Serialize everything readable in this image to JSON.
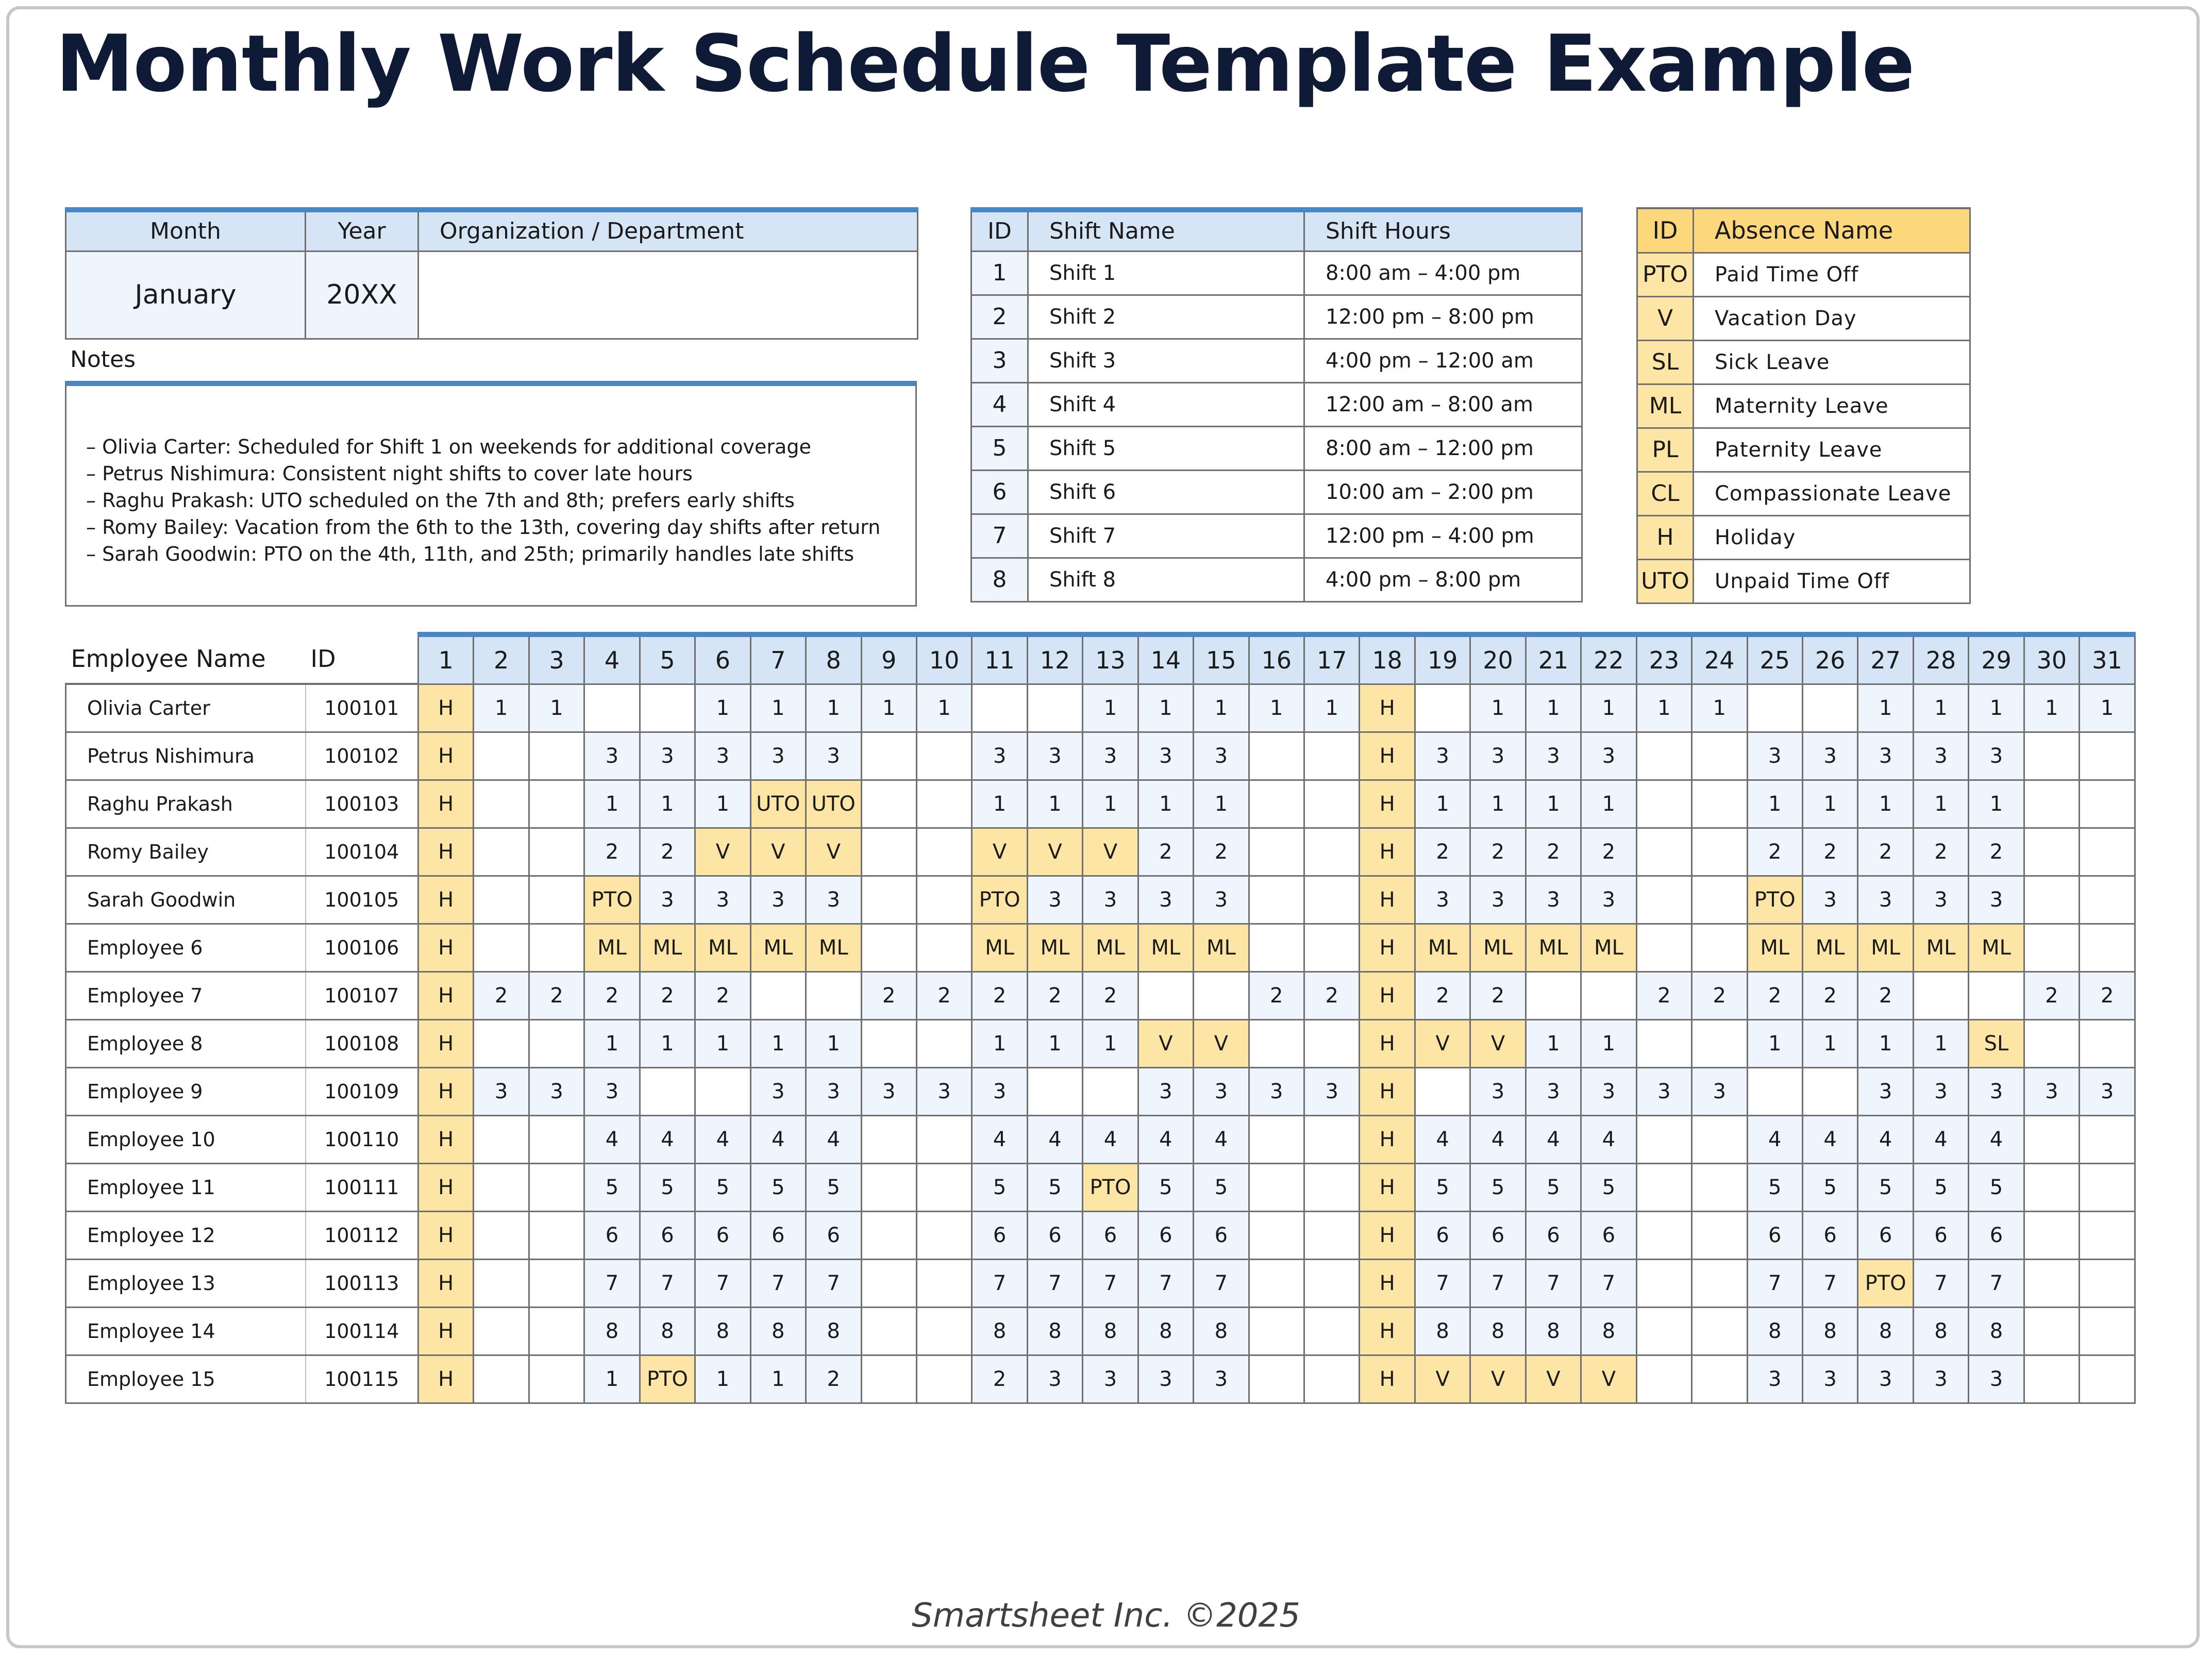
{
  "title": "Monthly Work Schedule Template Example",
  "info": {
    "headers": {
      "month": "Month",
      "year": "Year",
      "org": "Organization / Department"
    },
    "month": "January",
    "year": "20XX",
    "org": ""
  },
  "notes": {
    "label": "Notes",
    "lines": [
      "– Olivia Carter: Scheduled for Shift 1 on weekends for additional coverage",
      "– Petrus Nishimura: Consistent night shifts to cover late hours",
      "– Raghu Prakash: UTO scheduled on the 7th and 8th; prefers early shifts",
      "– Romy Bailey: Vacation from the 6th to the 13th, covering day shifts after return",
      "– Sarah Goodwin: PTO on the 4th, 11th, and 25th; primarily handles late shifts"
    ]
  },
  "shifts": {
    "headers": {
      "id": "ID",
      "name": "Shift Name",
      "hours": "Shift Hours"
    },
    "rows": [
      {
        "id": "1",
        "name": "Shift 1",
        "hours": "8:00 am – 4:00 pm"
      },
      {
        "id": "2",
        "name": "Shift 2",
        "hours": "12:00 pm – 8:00 pm"
      },
      {
        "id": "3",
        "name": "Shift 3",
        "hours": "4:00 pm – 12:00 am"
      },
      {
        "id": "4",
        "name": "Shift 4",
        "hours": "12:00 am – 8:00 am"
      },
      {
        "id": "5",
        "name": "Shift 5",
        "hours": "8:00 am – 12:00 pm"
      },
      {
        "id": "6",
        "name": "Shift 6",
        "hours": "10:00 am – 2:00 pm"
      },
      {
        "id": "7",
        "name": "Shift 7",
        "hours": "12:00 pm – 4:00 pm"
      },
      {
        "id": "8",
        "name": "Shift 8",
        "hours": "4:00 pm – 8:00 pm"
      }
    ]
  },
  "absences": {
    "headers": {
      "id": "ID",
      "name": "Absence Name"
    },
    "rows": [
      {
        "id": "PTO",
        "name": "Paid Time Off"
      },
      {
        "id": "V",
        "name": "Vacation Day"
      },
      {
        "id": "SL",
        "name": "Sick Leave"
      },
      {
        "id": "ML",
        "name": "Maternity Leave"
      },
      {
        "id": "PL",
        "name": "Paternity Leave"
      },
      {
        "id": "CL",
        "name": "Compassionate Leave"
      },
      {
        "id": "H",
        "name": "Holiday"
      },
      {
        "id": "UTO",
        "name": "Unpaid Time Off"
      }
    ]
  },
  "schedule": {
    "headers": {
      "name": "Employee Name",
      "id": "ID"
    },
    "days": [
      "1",
      "2",
      "3",
      "4",
      "5",
      "6",
      "7",
      "8",
      "9",
      "10",
      "11",
      "12",
      "13",
      "14",
      "15",
      "16",
      "17",
      "18",
      "19",
      "20",
      "21",
      "22",
      "23",
      "24",
      "25",
      "26",
      "27",
      "28",
      "29",
      "30",
      "31"
    ],
    "rows": [
      {
        "name": "Olivia Carter",
        "id": "100101",
        "cells": [
          "H",
          "1",
          "1",
          "",
          "",
          "1",
          "1",
          "1",
          "1",
          "1",
          "",
          "",
          "1",
          "1",
          "1",
          "1",
          "1",
          "H",
          "",
          "1",
          "1",
          "1",
          "1",
          "1",
          "",
          "",
          "1",
          "1",
          "1",
          "1",
          "1"
        ]
      },
      {
        "name": "Petrus Nishimura",
        "id": "100102",
        "cells": [
          "H",
          "",
          "",
          "3",
          "3",
          "3",
          "3",
          "3",
          "",
          "",
          "3",
          "3",
          "3",
          "3",
          "3",
          "",
          "",
          "H",
          "3",
          "3",
          "3",
          "3",
          "",
          "",
          "3",
          "3",
          "3",
          "3",
          "3",
          "",
          ""
        ]
      },
      {
        "name": "Raghu Prakash",
        "id": "100103",
        "cells": [
          "H",
          "",
          "",
          "1",
          "1",
          "1",
          "UTO",
          "UTO",
          "",
          "",
          "1",
          "1",
          "1",
          "1",
          "1",
          "",
          "",
          "H",
          "1",
          "1",
          "1",
          "1",
          "",
          "",
          "1",
          "1",
          "1",
          "1",
          "1",
          "",
          ""
        ]
      },
      {
        "name": "Romy Bailey",
        "id": "100104",
        "cells": [
          "H",
          "",
          "",
          "2",
          "2",
          "V",
          "V",
          "V",
          "",
          "",
          "V",
          "V",
          "V",
          "2",
          "2",
          "",
          "",
          "H",
          "2",
          "2",
          "2",
          "2",
          "",
          "",
          "2",
          "2",
          "2",
          "2",
          "2",
          "",
          ""
        ]
      },
      {
        "name": "Sarah Goodwin",
        "id": "100105",
        "cells": [
          "H",
          "",
          "",
          "PTO",
          "3",
          "3",
          "3",
          "3",
          "",
          "",
          "PTO",
          "3",
          "3",
          "3",
          "3",
          "",
          "",
          "H",
          "3",
          "3",
          "3",
          "3",
          "",
          "",
          "PTO",
          "3",
          "3",
          "3",
          "3",
          "",
          ""
        ]
      },
      {
        "name": "Employee 6",
        "id": "100106",
        "cells": [
          "H",
          "",
          "",
          "ML",
          "ML",
          "ML",
          "ML",
          "ML",
          "",
          "",
          "ML",
          "ML",
          "ML",
          "ML",
          "ML",
          "",
          "",
          "H",
          "ML",
          "ML",
          "ML",
          "ML",
          "",
          "",
          "ML",
          "ML",
          "ML",
          "ML",
          "ML",
          "",
          ""
        ]
      },
      {
        "name": "Employee 7",
        "id": "100107",
        "cells": [
          "H",
          "2",
          "2",
          "2",
          "2",
          "2",
          "",
          "",
          "2",
          "2",
          "2",
          "2",
          "2",
          "",
          "",
          "2",
          "2",
          "H",
          "2",
          "2",
          "",
          "",
          "2",
          "2",
          "2",
          "2",
          "2",
          "",
          "",
          "2",
          "2"
        ]
      },
      {
        "name": "Employee 8",
        "id": "100108",
        "cells": [
          "H",
          "",
          "",
          "1",
          "1",
          "1",
          "1",
          "1",
          "",
          "",
          "1",
          "1",
          "1",
          "V",
          "V",
          "",
          "",
          "H",
          "V",
          "V",
          "1",
          "1",
          "",
          "",
          "1",
          "1",
          "1",
          "1",
          "SL",
          "",
          ""
        ]
      },
      {
        "name": "Employee 9",
        "id": "100109",
        "cells": [
          "H",
          "3",
          "3",
          "3",
          "",
          "",
          "3",
          "3",
          "3",
          "3",
          "3",
          "",
          "",
          "3",
          "3",
          "3",
          "3",
          "H",
          "",
          "3",
          "3",
          "3",
          "3",
          "3",
          "",
          "",
          "3",
          "3",
          "3",
          "3",
          "3"
        ]
      },
      {
        "name": "Employee 10",
        "id": "100110",
        "cells": [
          "H",
          "",
          "",
          "4",
          "4",
          "4",
          "4",
          "4",
          "",
          "",
          "4",
          "4",
          "4",
          "4",
          "4",
          "",
          "",
          "H",
          "4",
          "4",
          "4",
          "4",
          "",
          "",
          "4",
          "4",
          "4",
          "4",
          "4",
          "",
          ""
        ]
      },
      {
        "name": "Employee 11",
        "id": "100111",
        "cells": [
          "H",
          "",
          "",
          "5",
          "5",
          "5",
          "5",
          "5",
          "",
          "",
          "5",
          "5",
          "PTO",
          "5",
          "5",
          "",
          "",
          "H",
          "5",
          "5",
          "5",
          "5",
          "",
          "",
          "5",
          "5",
          "5",
          "5",
          "5",
          "",
          ""
        ]
      },
      {
        "name": "Employee 12",
        "id": "100112",
        "cells": [
          "H",
          "",
          "",
          "6",
          "6",
          "6",
          "6",
          "6",
          "",
          "",
          "6",
          "6",
          "6",
          "6",
          "6",
          "",
          "",
          "H",
          "6",
          "6",
          "6",
          "6",
          "",
          "",
          "6",
          "6",
          "6",
          "6",
          "6",
          "",
          ""
        ]
      },
      {
        "name": "Employee 13",
        "id": "100113",
        "cells": [
          "H",
          "",
          "",
          "7",
          "7",
          "7",
          "7",
          "7",
          "",
          "",
          "7",
          "7",
          "7",
          "7",
          "7",
          "",
          "",
          "H",
          "7",
          "7",
          "7",
          "7",
          "",
          "",
          "7",
          "7",
          "PTO",
          "7",
          "7",
          "",
          ""
        ]
      },
      {
        "name": "Employee 14",
        "id": "100114",
        "cells": [
          "H",
          "",
          "",
          "8",
          "8",
          "8",
          "8",
          "8",
          "",
          "",
          "8",
          "8",
          "8",
          "8",
          "8",
          "",
          "",
          "H",
          "8",
          "8",
          "8",
          "8",
          "",
          "",
          "8",
          "8",
          "8",
          "8",
          "8",
          "",
          ""
        ]
      },
      {
        "name": "Employee 15",
        "id": "100115",
        "cells": [
          "H",
          "",
          "",
          "1",
          "PTO",
          "1",
          "1",
          "2",
          "",
          "",
          "2",
          "3",
          "3",
          "3",
          "3",
          "",
          "",
          "H",
          "V",
          "V",
          "V",
          "V",
          "",
          "",
          "3",
          "3",
          "3",
          "3",
          "3",
          "",
          ""
        ]
      }
    ]
  },
  "colors": {
    "accent_blue": "#4a86c6",
    "header_blue": "#d6e5f5",
    "shift_cell_blue": "#eef5fd",
    "absence_yellow": "#fde6a5",
    "absence_header_yellow": "#fdd77c",
    "title_navy": "#0e1a36"
  },
  "footer": "Smartsheet Inc. ©2025"
}
